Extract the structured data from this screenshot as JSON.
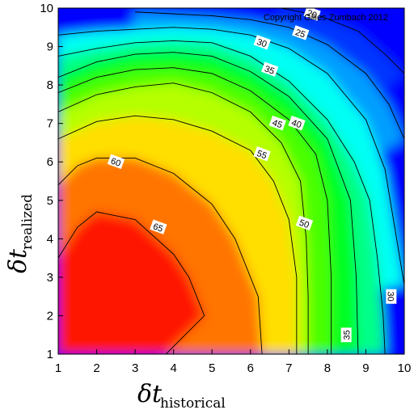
{
  "chart_data": {
    "type": "heatmap",
    "subtype": "contour",
    "title": "",
    "annotation": "Copyright Gilles Zumbach 2012",
    "xlabel": {
      "main": "δt",
      "subscript": "historical"
    },
    "ylabel": {
      "main": "δt",
      "subscript": "realized"
    },
    "xlim": [
      1,
      10
    ],
    "ylim": [
      1,
      10
    ],
    "x_ticks": [
      "1",
      "2",
      "3",
      "4",
      "5",
      "6",
      "7",
      "8",
      "9",
      "10"
    ],
    "y_ticks": [
      "1",
      "2",
      "3",
      "4",
      "5",
      "6",
      "7",
      "8",
      "9",
      "10"
    ],
    "grid": false,
    "legend": "none",
    "colormap": [
      "#0000ff",
      "#00ffff",
      "#00ff00",
      "#ffff00",
      "#ff0000"
    ],
    "value_range": [
      20,
      68
    ],
    "contours": [
      {
        "level": 65,
        "label": "65",
        "label_at": [
          3.6,
          4.3
        ],
        "points": [
          [
            1,
            3.5
          ],
          [
            1.5,
            4.3
          ],
          [
            2,
            4.7
          ],
          [
            3,
            4.5
          ],
          [
            4,
            3.6
          ],
          [
            4.4,
            3
          ],
          [
            4.8,
            2
          ],
          [
            4.3,
            1.5
          ],
          [
            3.8,
            1
          ]
        ]
      },
      {
        "level": 60,
        "label": "60",
        "label_at": [
          2.5,
          6.0
        ],
        "points": [
          [
            1,
            5.4
          ],
          [
            1.5,
            5.9
          ],
          [
            2,
            6.1
          ],
          [
            3,
            6.1
          ],
          [
            4,
            5.7
          ],
          [
            5,
            4.9
          ],
          [
            5.6,
            4
          ],
          [
            6.2,
            2.5
          ],
          [
            6.3,
            1
          ]
        ]
      },
      {
        "level": 55,
        "label": "55",
        "label_at": [
          6.3,
          6.2
        ],
        "points": [
          [
            1,
            6.6
          ],
          [
            2,
            7.05
          ],
          [
            3,
            7.2
          ],
          [
            4,
            7.1
          ],
          [
            5,
            6.8
          ],
          [
            6,
            6.3
          ],
          [
            6.6,
            5.5
          ],
          [
            7,
            4.5
          ],
          [
            7.2,
            3
          ],
          [
            7.2,
            1
          ]
        ]
      },
      {
        "level": 50,
        "label": "50",
        "label_at": [
          7.4,
          4.4
        ],
        "points": [
          [
            1,
            7.3
          ],
          [
            2,
            7.75
          ],
          [
            3,
            7.95
          ],
          [
            4,
            8.05
          ],
          [
            5,
            7.8
          ],
          [
            6,
            7.3
          ],
          [
            6.8,
            6.5
          ],
          [
            7.3,
            5.5
          ],
          [
            7.45,
            4
          ],
          [
            7.5,
            2.5
          ],
          [
            7.5,
            1
          ]
        ]
      },
      {
        "level": 45,
        "label": "45",
        "label_at": [
          6.7,
          7.0
        ],
        "points": [
          [
            1,
            7.8
          ],
          [
            2,
            8.2
          ],
          [
            3,
            8.4
          ],
          [
            4,
            8.45
          ],
          [
            5,
            8.3
          ],
          [
            6,
            7.85
          ],
          [
            7,
            7.1
          ],
          [
            7.7,
            6.2
          ],
          [
            8,
            5
          ],
          [
            8.1,
            3
          ],
          [
            8.1,
            1
          ]
        ]
      },
      {
        "level": 40,
        "label": "40",
        "label_at": [
          7.2,
          7.0
        ],
        "points": [
          [
            1,
            8.2
          ],
          [
            2,
            8.6
          ],
          [
            3,
            8.8
          ],
          [
            4,
            8.85
          ],
          [
            5,
            8.75
          ],
          [
            6,
            8.35
          ],
          [
            7,
            7.7
          ],
          [
            8,
            6.6
          ],
          [
            8.6,
            5
          ],
          [
            8.75,
            3
          ],
          [
            8.8,
            1
          ]
        ]
      },
      {
        "level": 35,
        "label": "35",
        "label_at": [
          6.5,
          8.4
        ],
        "points": [
          [
            1,
            8.75
          ],
          [
            2,
            8.95
          ],
          [
            3,
            9.1
          ],
          [
            4,
            9.15
          ],
          [
            5,
            9.1
          ],
          [
            6,
            8.75
          ],
          [
            7,
            8.1
          ],
          [
            8,
            7.1
          ],
          [
            8.7,
            6
          ],
          [
            9.1,
            5
          ],
          [
            9.3,
            3.5
          ],
          [
            9.45,
            2
          ],
          [
            9.5,
            1
          ]
        ]
      },
      {
        "level": 30,
        "label": "30",
        "label_at": [
          6.3,
          9.1
        ],
        "points": [
          [
            1,
            9.3
          ],
          [
            2,
            9.4
          ],
          [
            3,
            9.45
          ],
          [
            4,
            9.5
          ],
          [
            5,
            9.45
          ],
          [
            6,
            9.3
          ],
          [
            7,
            8.95
          ],
          [
            8,
            8.3
          ],
          [
            9,
            7.1
          ],
          [
            9.5,
            5.8
          ],
          [
            9.8,
            4
          ],
          [
            10,
            2.8
          ]
        ]
      },
      {
        "level": 25,
        "label": "25",
        "label_at": [
          7.3,
          9.35
        ],
        "points": [
          [
            3,
            9.9
          ],
          [
            4,
            9.85
          ],
          [
            5,
            9.8
          ],
          [
            6,
            9.7
          ],
          [
            7,
            9.5
          ],
          [
            8,
            9.05
          ],
          [
            9,
            8.3
          ],
          [
            9.6,
            7.5
          ],
          [
            10,
            6.6
          ]
        ]
      },
      {
        "level": 20,
        "label": "20",
        "label_at": [
          7.6,
          9.85
        ],
        "points": [
          [
            6.8,
            10
          ],
          [
            7.8,
            9.8
          ],
          [
            8.8,
            9.4
          ],
          [
            9.5,
            8.8
          ],
          [
            10,
            8.3
          ]
        ]
      }
    ],
    "extra_labels": [
      {
        "label": "30",
        "at": [
          9.65,
          2.5
        ],
        "rotate": 90
      },
      {
        "label": "35",
        "at": [
          8.5,
          1.5
        ],
        "rotate": -90
      }
    ]
  }
}
